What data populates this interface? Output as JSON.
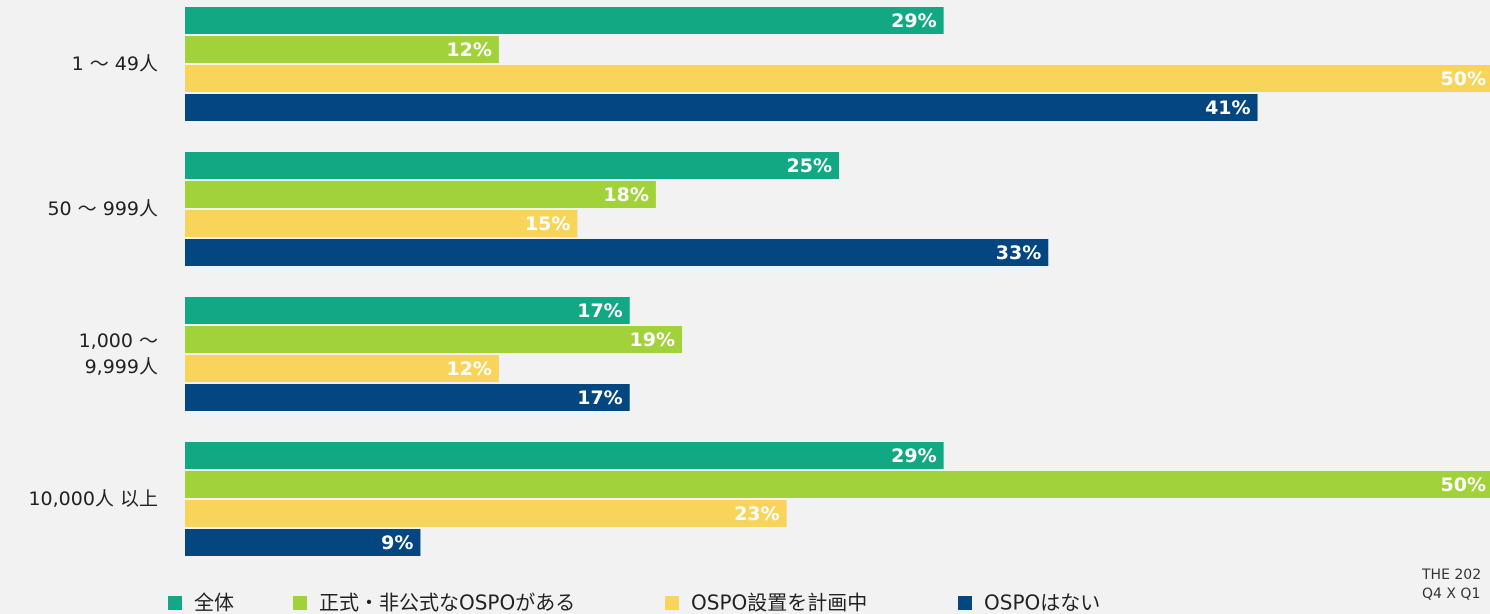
{
  "chart_data": {
    "type": "bar",
    "orientation": "horizontal",
    "categories": [
      "1 〜 49人",
      "50 〜 999人",
      "1,000 〜\n9,999人",
      "10,000人 以上"
    ],
    "series": [
      {
        "name": "全体",
        "color": "#13a884",
        "values": [
          29,
          25,
          17,
          29
        ],
        "value_labels": [
          "29%",
          "25%",
          "17%",
          "29%"
        ]
      },
      {
        "name": "正式・非公式なOSPOがある",
        "color": "#a2d23a",
        "values": [
          12,
          18,
          19,
          50
        ],
        "value_labels": [
          "12%",
          "18%",
          "19%",
          "50%"
        ]
      },
      {
        "name": "OSPO設置を計画中",
        "color": "#f8d55a",
        "values": [
          50,
          15,
          12,
          23
        ],
        "value_labels": [
          "50%",
          "15%",
          "12%",
          "23%"
        ]
      },
      {
        "name": "OSPOはない",
        "color": "#034680",
        "values": [
          41,
          33,
          17,
          9
        ],
        "value_labels": [
          "41%",
          "33%",
          "17%",
          "9%"
        ]
      }
    ],
    "xlim": [
      0,
      50
    ],
    "notes": [
      "THE 202",
      "Q4 X Q1"
    ]
  }
}
